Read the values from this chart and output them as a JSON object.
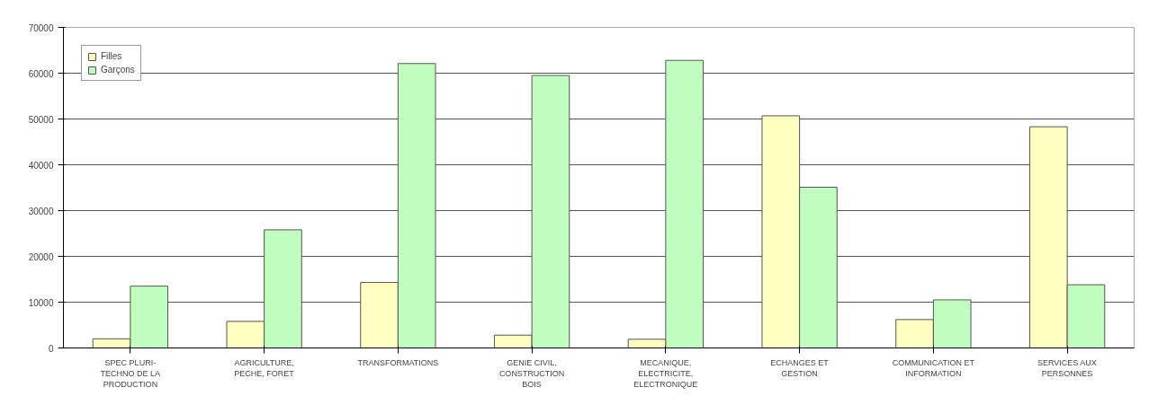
{
  "chart_data": {
    "type": "bar",
    "categories": [
      "SPEC PLURI-TECHNO DE LA PRODUCTION",
      "AGRICULTURE, PECHE, FORET",
      "TRANSFORMATIONS",
      "GENIE CIVIL, CONSTRUCTION BOIS",
      "MECANIQUE, ELECTRICITE, ELECTRONIQUE",
      "ECHANGES ET GESTION",
      "COMMUNICATION ET INFORMATION",
      "SERVICES AUX PERSONNES"
    ],
    "series": [
      {
        "name": "Filles",
        "color": "#ffffc0",
        "values": [
          2000,
          5800,
          14300,
          2800,
          1900,
          50700,
          6200,
          48300
        ]
      },
      {
        "name": "Garçons",
        "color": "#c0ffc0",
        "values": [
          13500,
          25800,
          62100,
          59500,
          62800,
          35100,
          10500,
          13800
        ]
      }
    ],
    "ylim": [
      0,
      70000
    ],
    "yticks": [
      0,
      10000,
      20000,
      30000,
      40000,
      50000,
      60000,
      70000
    ],
    "grid": "y",
    "legend": "top left"
  }
}
